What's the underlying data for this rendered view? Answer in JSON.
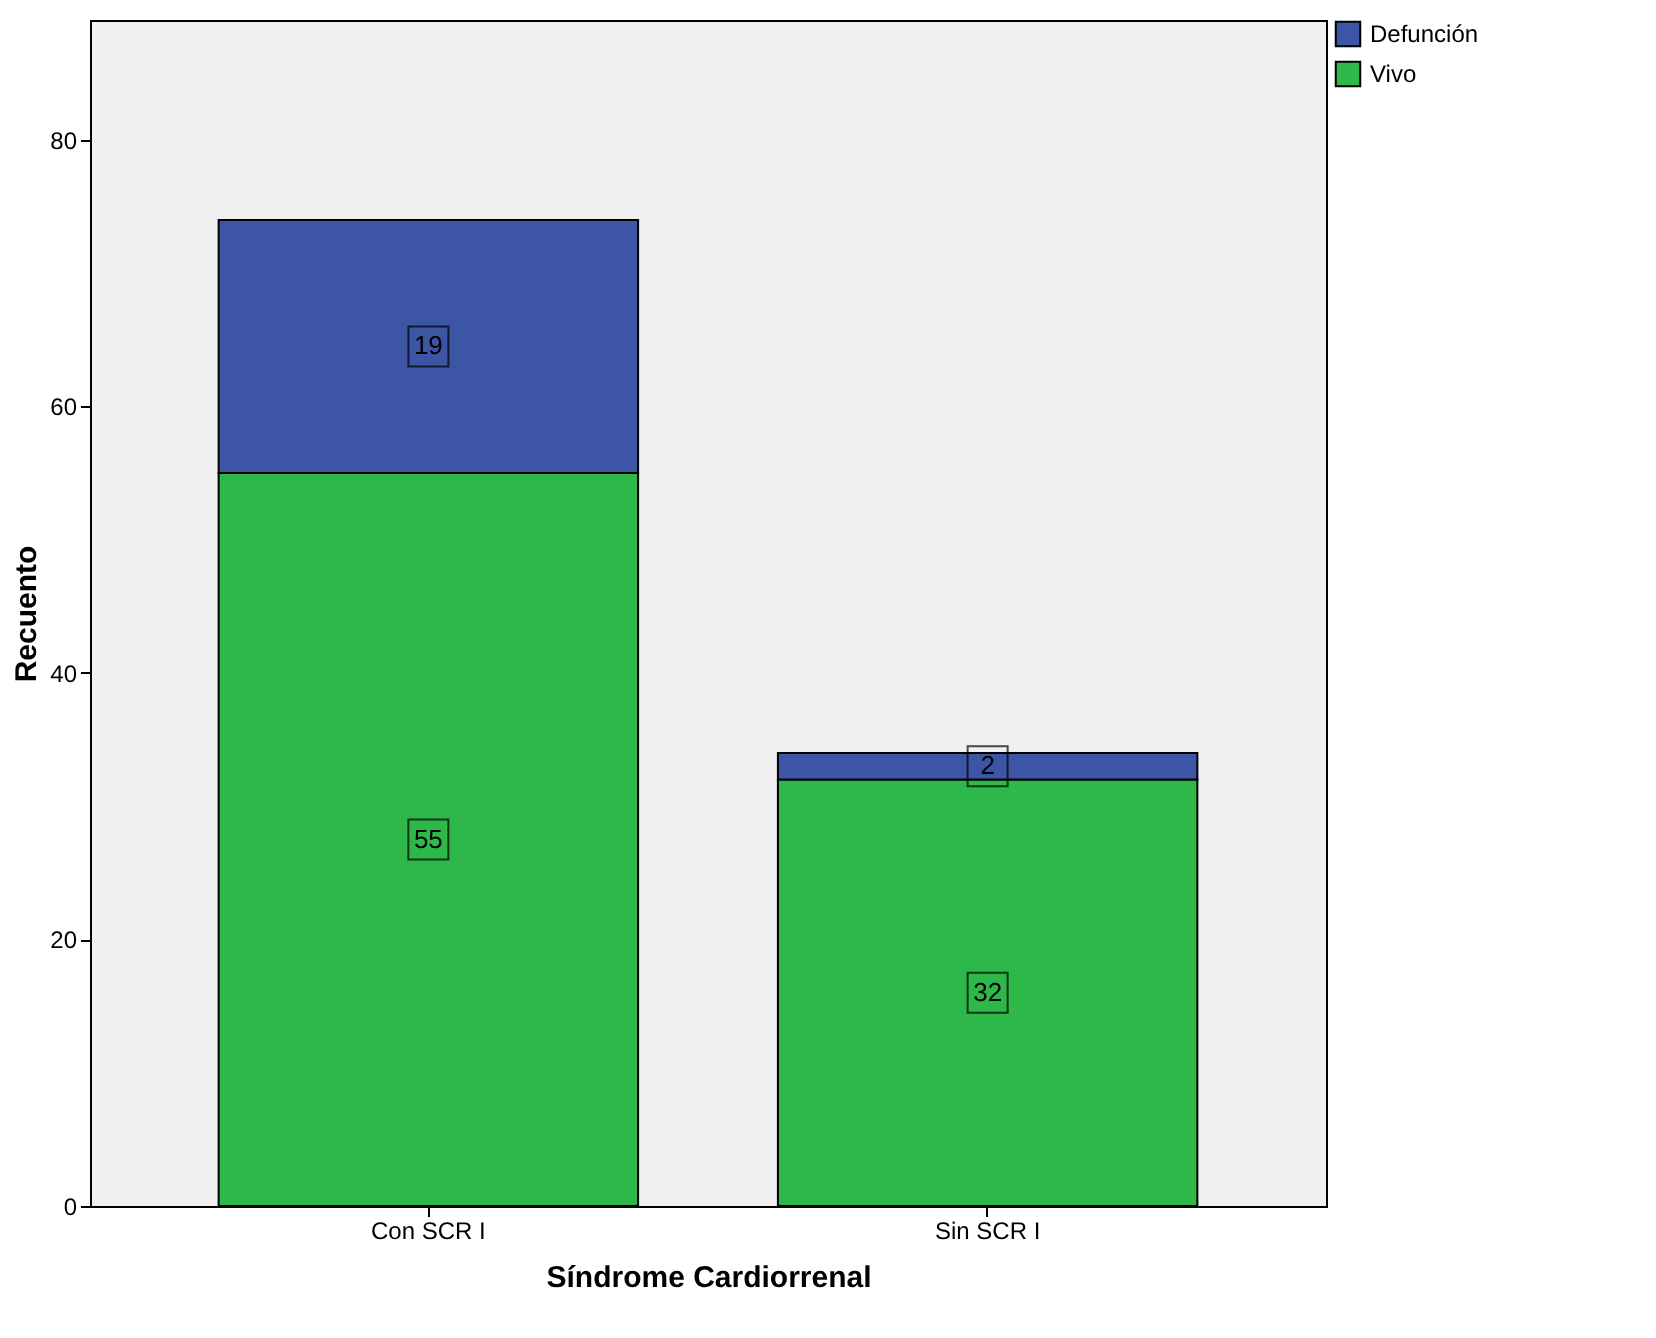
{
  "chart_data": {
    "type": "bar",
    "stacked": true,
    "xlabel": "Síndrome Cardiorrenal",
    "ylabel": "Recuento",
    "categories": [
      "Con SCR I",
      "Sin SCR I"
    ],
    "series": [
      {
        "name": "Vivo",
        "color": "#2fb84a",
        "values": [
          55,
          32
        ]
      },
      {
        "name": "Defunción",
        "color": "#3c55a5",
        "values": [
          19,
          2
        ]
      }
    ],
    "ylim": [
      0,
      89
    ],
    "yticks": [
      0,
      20,
      40,
      60,
      80
    ],
    "grid": false,
    "legend": "top right",
    "data_labels": true
  }
}
